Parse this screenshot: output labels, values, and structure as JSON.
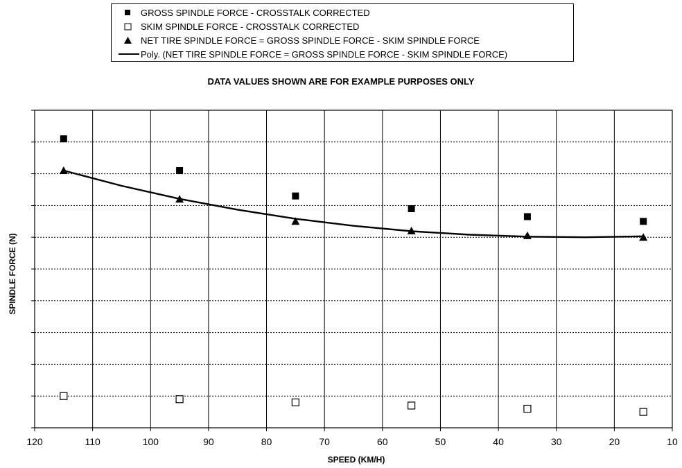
{
  "chart_data": {
    "type": "scatter",
    "title": "DATA VALUES SHOWN ARE FOR EXAMPLE PURPOSES ONLY",
    "xlabel": "SPEED (KM/H)",
    "ylabel": "SPINDLE FORCE (N)",
    "xlim": [
      120,
      10
    ],
    "x_reversed": true,
    "x_ticks": [
      "120",
      "110",
      "100",
      "90",
      "80",
      "70",
      "60",
      "50",
      "40",
      "30",
      "20",
      "10"
    ],
    "y_tick_labels_shown": false,
    "grid": true,
    "legend_position": "top-center",
    "ylim": [
      0,
      10
    ],
    "series": [
      {
        "name": "GROSS SPINDLE FORCE - CROSSTALK CORRECTED",
        "marker": "filled-square",
        "x": [
          115,
          95,
          75,
          55,
          35,
          15
        ],
        "y": [
          9.1,
          8.1,
          7.3,
          6.9,
          6.65,
          6.5
        ]
      },
      {
        "name": "SKIM SPINDLE FORCE - CROSSTALK CORRECTED",
        "marker": "open-square",
        "x": [
          115,
          95,
          75,
          55,
          35,
          15
        ],
        "y": [
          1.0,
          0.9,
          0.8,
          0.7,
          0.6,
          0.5
        ]
      },
      {
        "name": "NET TIRE SPINDLE FORCE = GROSS SPINDLE FORCE - SKIM SPINDLE FORCE",
        "marker": "filled-triangle",
        "x": [
          115,
          95,
          75,
          55,
          35,
          15
        ],
        "y": [
          8.1,
          7.2,
          6.5,
          6.2,
          6.05,
          6.0
        ]
      },
      {
        "name": "Poly. (NET TIRE SPINDLE FORCE = GROSS SPINDLE FORCE - SKIM SPINDLE FORCE)",
        "marker": "line",
        "x": [
          115,
          105,
          95,
          85,
          75,
          65,
          55,
          45,
          35,
          25,
          15
        ],
        "y": [
          8.1,
          7.62,
          7.21,
          6.87,
          6.58,
          6.36,
          6.19,
          6.08,
          6.02,
          6.0,
          6.03
        ]
      }
    ]
  },
  "colors": {
    "marker": "#000000",
    "grid": "#000000",
    "background": "#ffffff"
  }
}
